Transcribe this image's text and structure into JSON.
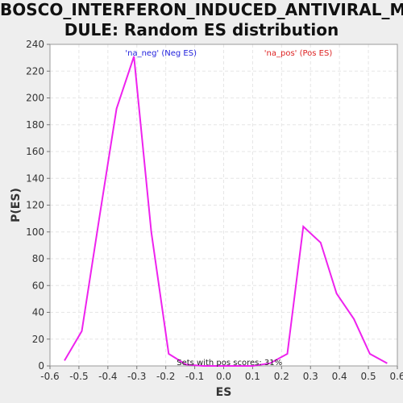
{
  "chart_data": {
    "type": "line",
    "title_line1": "BOSCO_INTERFERON_INDUCED_ANTIVIRAL_MO",
    "title_line2": "DULE: Random ES distribution",
    "xlabel": "ES",
    "ylabel": "P(ES)",
    "xlim": [
      -0.6,
      0.6
    ],
    "ylim": [
      0,
      240
    ],
    "xticks": [
      "-0.6",
      "-0.5",
      "-0.4",
      "-0.3",
      "-0.2",
      "-0.1",
      "0.0",
      "0.1",
      "0.2",
      "0.3",
      "0.4",
      "0.5",
      "0.6"
    ],
    "yticks": [
      "0",
      "20",
      "40",
      "60",
      "80",
      "100",
      "120",
      "140",
      "160",
      "180",
      "200",
      "220",
      "240"
    ],
    "grid": true,
    "legend": [
      {
        "label": "'na_neg' (Neg ES)",
        "color": "#2222dd"
      },
      {
        "label": "'na_pos' (Pos ES)",
        "color": "#dd2222"
      }
    ],
    "annotation": "Sets with pos scores: 31%",
    "series": [
      {
        "color": "#ee22ee",
        "x": [
          -0.55,
          -0.49,
          -0.43,
          -0.37,
          -0.31,
          -0.25,
          -0.19,
          -0.13,
          -0.07,
          -0.01,
          0.05,
          0.1,
          0.16,
          0.22,
          0.275,
          0.335,
          0.39,
          0.45,
          0.505,
          0.565
        ],
        "y": [
          4,
          26,
          110,
          192,
          231,
          100,
          9,
          1,
          0,
          0,
          0,
          0,
          2,
          9,
          104,
          92,
          54,
          35,
          9,
          2
        ]
      }
    ]
  }
}
